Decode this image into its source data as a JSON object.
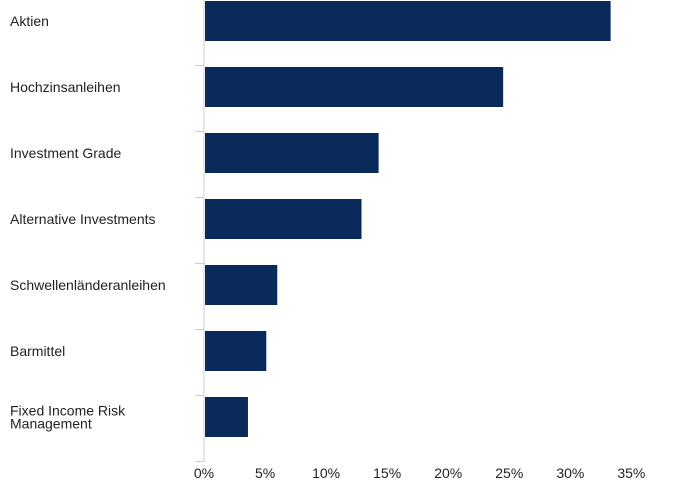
{
  "chart_data": {
    "type": "bar",
    "orientation": "horizontal",
    "categories": [
      "Aktien",
      "Hochzinsanleihen",
      "Investment Grade",
      "Alternative Investments",
      "Schwellenländeranleihen",
      "Barmittel",
      "Fixed Income Risk Management"
    ],
    "category_lines": [
      [
        "Aktien"
      ],
      [
        "Hochzinsanleihen"
      ],
      [
        "Investment Grade"
      ],
      [
        "Alternative Investments"
      ],
      [
        "Schwellenländeranleihen"
      ],
      [
        "Barmittel"
      ],
      [
        "Fixed Income Risk",
        "Management"
      ]
    ],
    "values": [
      33.3,
      24.5,
      14.3,
      12.9,
      6.0,
      5.1,
      3.6
    ],
    "xlim": [
      0,
      39.8
    ],
    "x_ticks": [
      0,
      5,
      10,
      15,
      20,
      25,
      30,
      35
    ],
    "x_tick_labels": [
      "0%",
      "5%",
      "10%",
      "15%",
      "20%",
      "25%",
      "30%",
      "35%"
    ],
    "bar_color": "#0a2a5c",
    "grid": false,
    "title": "",
    "xlabel": "",
    "ylabel": ""
  }
}
